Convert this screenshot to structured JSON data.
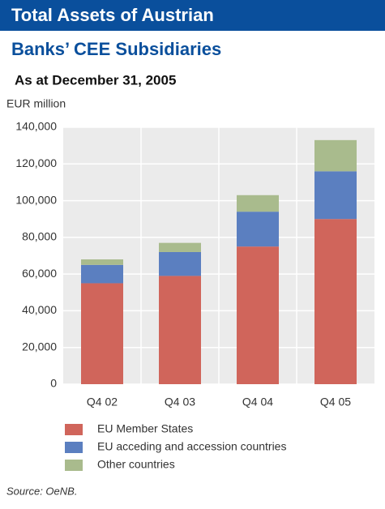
{
  "chart_data": {
    "type": "stacked_bar",
    "title": "Total Assets of Austrian",
    "title_line2": "Banks’ CEE Subsidiaries",
    "subtitle": "As at December 31, 2005",
    "y_label": "EUR million",
    "source": "Source: OeNB.",
    "categories": [
      "Q4 02",
      "Q4 03",
      "Q4 04",
      "Q4 05"
    ],
    "series": [
      {
        "name": "EU Member States",
        "color": "#d0655b",
        "values": [
          55000,
          59000,
          75000,
          90000
        ]
      },
      {
        "name": "EU acceding and accession countries",
        "color": "#5b7fc0",
        "values": [
          10000,
          13000,
          19000,
          26000
        ]
      },
      {
        "name": "Other countries",
        "color": "#a9bb8d",
        "values": [
          3000,
          5000,
          9000,
          17000
        ]
      }
    ],
    "ylim": [
      0,
      140000
    ],
    "yticks": [
      0,
      {
        "value": 20000,
        "label": "20,000"
      },
      {
        "value": 40000,
        "label": "40,000"
      },
      {
        "value": 60000,
        "label": "60,000"
      },
      {
        "value": 80000,
        "label": "80,000"
      },
      {
        "value": 100000,
        "label": "100,000"
      },
      {
        "value": 120000,
        "label": "120,000"
      },
      {
        "value": 140000,
        "label": "140,000"
      }
    ],
    "grid": true
  }
}
